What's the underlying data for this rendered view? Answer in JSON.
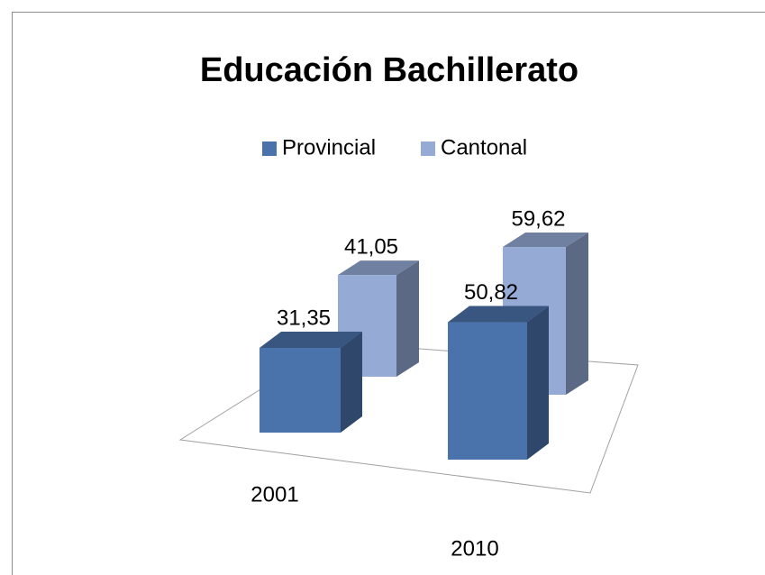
{
  "chart_data": {
    "type": "bar3d",
    "title": "Educación Bachillerato",
    "categories": [
      "2001",
      "2010"
    ],
    "series": [
      {
        "name": "Provincial",
        "color": "#4a72ab",
        "values": [
          31.35,
          50.82
        ],
        "value_labels": [
          "31,35",
          "50,82"
        ]
      },
      {
        "name": "Cantonal",
        "color": "#95aad5",
        "values": [
          41.05,
          59.62
        ],
        "value_labels": [
          "41,05",
          "59,62"
        ]
      }
    ],
    "legend": "top"
  }
}
